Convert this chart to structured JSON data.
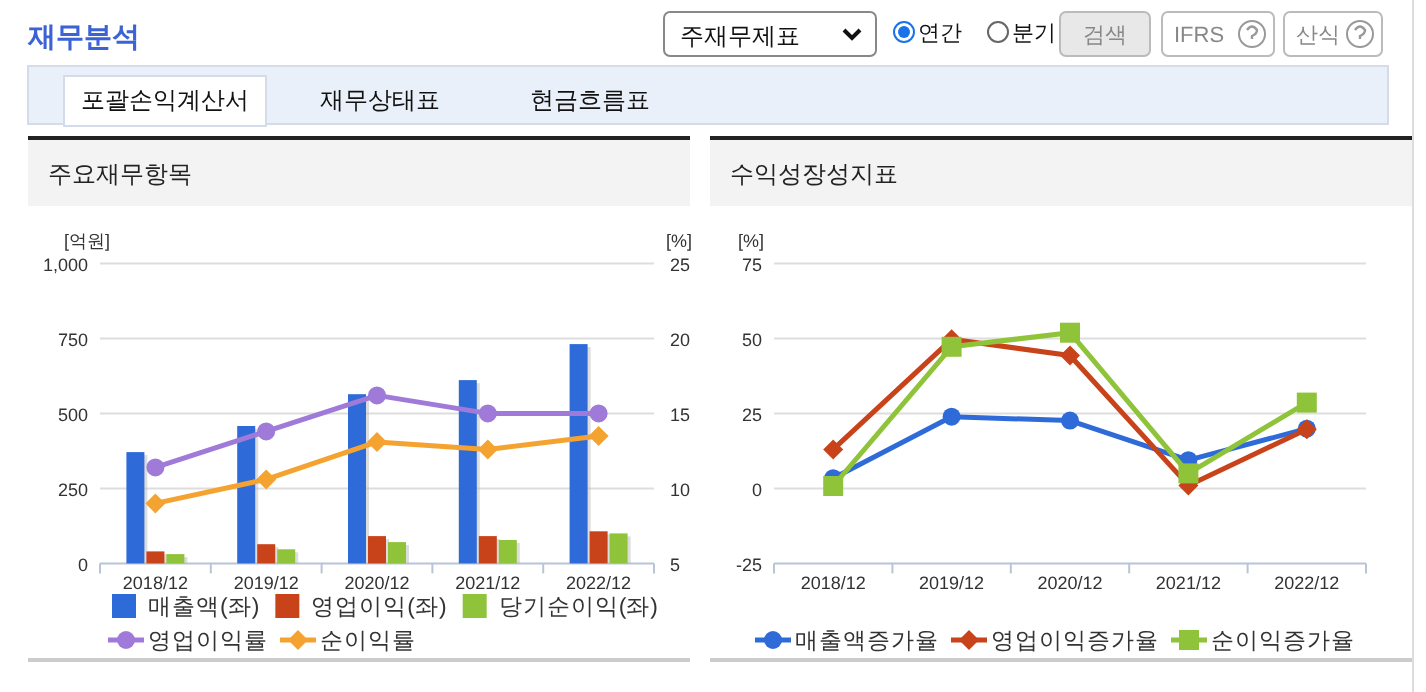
{
  "chart_data": [
    {
      "type": "other",
      "title": "재무분석",
      "annotations": [
        "주재무제표",
        "연간",
        "분기",
        "검색",
        "IFRS",
        "산식",
        "포괄손익계산서",
        "재무상태표",
        "현금흐름표"
      ]
    },
    {
      "type": "bar",
      "title": "주요재무항목",
      "ylabel": "[억원]",
      "y2label": "[%]",
      "categories": [
        "2018/12",
        "2019/12",
        "2020/12",
        "2021/12",
        "2022/12"
      ],
      "series": [
        {
          "name": "매출액(좌)",
          "type": "bar",
          "color": "#2f6bd8",
          "values": [
            371,
            458,
            564,
            611,
            731
          ]
        },
        {
          "name": "영업이익(좌)",
          "type": "bar",
          "color": "#c8431a",
          "values": [
            40,
            64,
            91,
            91,
            107
          ]
        },
        {
          "name": "당기순이익(좌)",
          "type": "bar",
          "color": "#8fc43a",
          "values": [
            31,
            47,
            71,
            78,
            100
          ]
        },
        {
          "name": "영업이익률",
          "type": "line",
          "axis": "y2",
          "marker": "circle",
          "color": "#a07ad8",
          "values": [
            11.4,
            13.8,
            16.2,
            15.0,
            15.0
          ]
        },
        {
          "name": "순이익률",
          "type": "line",
          "axis": "y2",
          "marker": "diamond",
          "color": "#f5a330",
          "values": [
            9.0,
            10.6,
            13.1,
            12.6,
            13.5
          ]
        }
      ],
      "ylim": [
        0,
        1000
      ],
      "yticks": [
        0,
        250,
        500,
        750,
        {
          "value": 1000,
          "label": "1,000"
        }
      ],
      "y2lim": [
        5,
        25
      ],
      "y2ticks": [
        5,
        10,
        15,
        20,
        25
      ],
      "grid": "y",
      "legend": "bottom"
    },
    {
      "type": "line",
      "title": "수익성장성지표",
      "ylabel": "[%]",
      "categories": [
        "2018/12",
        "2019/12",
        "2020/12",
        "2021/12",
        "2022/12"
      ],
      "series": [
        {
          "name": "매출액증가율",
          "marker": "circle",
          "color": "#2f6bd8",
          "values": [
            3.4,
            23.9,
            22.6,
            9.4,
            19.9
          ]
        },
        {
          "name": "영업이익증가율",
          "marker": "diamond",
          "color": "#c8431a",
          "values": [
            13.0,
            49.7,
            44.3,
            1.0,
            19.7
          ]
        },
        {
          "name": "순이익증가율",
          "marker": "square",
          "color": "#8fc43a",
          "values": [
            0.8,
            47.2,
            51.9,
            5.0,
            28.6
          ]
        }
      ],
      "ylim": [
        -25,
        75
      ],
      "yticks": [
        -25,
        0,
        25,
        50,
        75
      ],
      "grid": "y",
      "legend": "bottom"
    }
  ]
}
